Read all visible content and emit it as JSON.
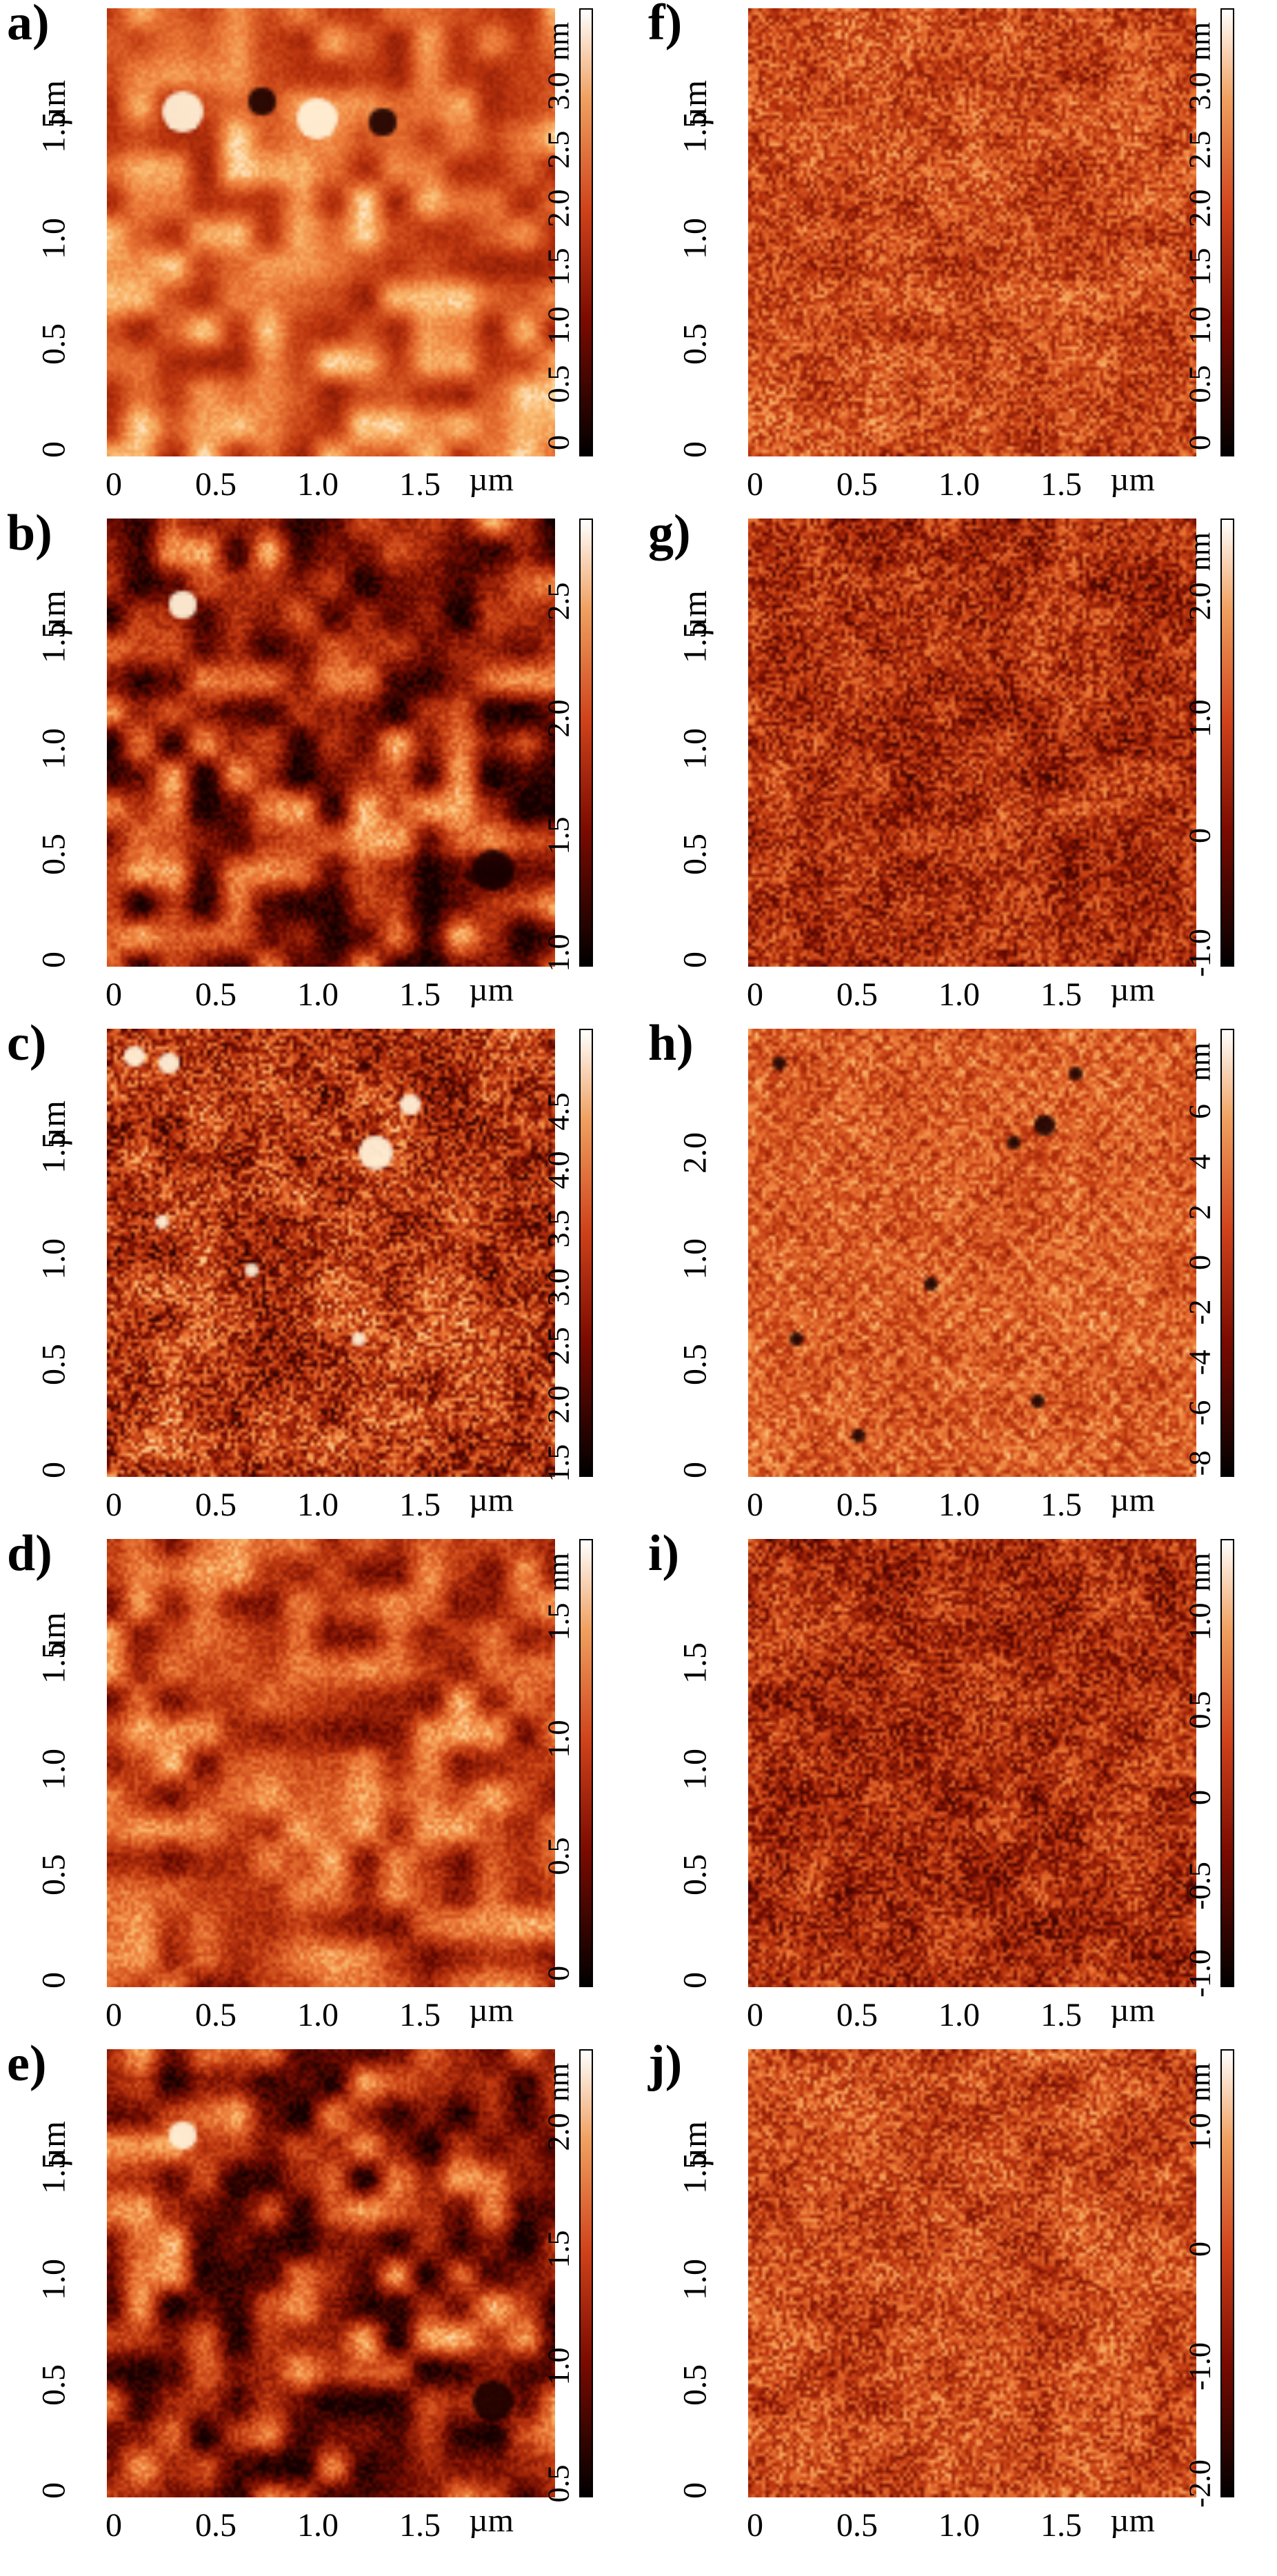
{
  "panels": [
    {
      "label": "a)",
      "y_unit": "µm",
      "y_ticks": [
        "0",
        "0.5",
        "1.0",
        "1.5"
      ],
      "x_ticks": [
        "0",
        "0.5",
        "1.0",
        "1.5"
      ],
      "x_unit": "µm",
      "scale_ticks": [
        "0",
        "0.5",
        "1.0",
        "1.5",
        "2.0",
        "2.5",
        "3.0"
      ],
      "scale_unit": "nm",
      "tone": "light"
    },
    {
      "label": "b)",
      "y_unit": "µm",
      "y_ticks": [
        "0",
        "0.5",
        "1.0",
        "1.5"
      ],
      "x_ticks": [
        "0",
        "0.5",
        "1.0",
        "1.5"
      ],
      "x_unit": "µm",
      "scale_ticks": [
        "1.0",
        "1.5",
        "2.0",
        "2.5"
      ],
      "scale_unit": "",
      "tone": "dark"
    },
    {
      "label": "c)",
      "y_unit": "µm",
      "y_ticks": [
        "0",
        "0.5",
        "1.0",
        "1.5"
      ],
      "x_ticks": [
        "0",
        "0.5",
        "1.0",
        "1.5"
      ],
      "x_unit": "µm",
      "scale_ticks": [
        "1.5",
        "2.0",
        "2.5",
        "3.0",
        "3.5",
        "4.0",
        "4.5"
      ],
      "scale_unit": "",
      "tone": "speckle"
    },
    {
      "label": "d)",
      "y_unit": "um",
      "y_ticks": [
        "0",
        "0.5",
        "1.0",
        "1.5"
      ],
      "x_ticks": [
        "0",
        "0.5",
        "1.0",
        "1.5"
      ],
      "x_unit": "µm",
      "scale_ticks": [
        "0",
        "0.5",
        "1.0",
        "1.5"
      ],
      "scale_unit": "nm",
      "tone": "mid"
    },
    {
      "label": "e)",
      "y_unit": "µm",
      "y_ticks": [
        "0",
        "0.5",
        "1.0",
        "1.5"
      ],
      "x_ticks": [
        "0",
        "0.5",
        "1.0",
        "1.5"
      ],
      "x_unit": "µm",
      "scale_ticks": [
        "0.5",
        "1.0",
        "1.5",
        "2.0"
      ],
      "scale_unit": "nm",
      "tone": "dark"
    },
    {
      "label": "f)",
      "y_unit": "µm",
      "y_ticks": [
        "0",
        "0.5",
        "1.0",
        "1.5"
      ],
      "x_ticks": [
        "0",
        "0.5",
        "1.0",
        "1.5"
      ],
      "x_unit": "µm",
      "scale_ticks": [
        "0",
        "0.5",
        "1.0",
        "1.5",
        "2.0",
        "2.5",
        "3.0"
      ],
      "scale_unit": "nm",
      "tone": "fine"
    },
    {
      "label": "g)",
      "y_unit": "µm",
      "y_ticks": [
        "0",
        "0.5",
        "1.0",
        "1.5"
      ],
      "x_ticks": [
        "0",
        "0.5",
        "1.0",
        "1.5"
      ],
      "x_unit": "µm",
      "scale_ticks": [
        "-1.0",
        "0",
        "1.0",
        "2.0"
      ],
      "scale_unit": "nm",
      "tone": "finedark"
    },
    {
      "label": "h)",
      "y_unit": "",
      "y_ticks": [
        "0",
        "0.5",
        "1.0",
        "2.0"
      ],
      "x_ticks": [
        "0",
        "0.5",
        "1.0",
        "1.5"
      ],
      "x_unit": "µm",
      "scale_ticks": [
        "-8",
        "-6",
        "-4",
        "-2",
        "0",
        "2",
        "4",
        "6"
      ],
      "scale_unit": "nm",
      "tone": "cells"
    },
    {
      "label": "i)",
      "y_unit": "",
      "y_ticks": [
        "0",
        "0.5",
        "1.0",
        "1.5"
      ],
      "x_ticks": [
        "0",
        "0.5",
        "1.0",
        "1.5"
      ],
      "x_unit": "µm",
      "scale_ticks": [
        "-1.0",
        "-0.5",
        "0",
        "0.5",
        "1.0"
      ],
      "scale_unit": "nm",
      "tone": "finedark"
    },
    {
      "label": "j)",
      "y_unit": "µm",
      "y_ticks": [
        "0",
        "0.5",
        "1.0",
        "1.5"
      ],
      "x_ticks": [
        "0",
        "0.5",
        "1.0",
        "1.5"
      ],
      "x_unit": "µm",
      "scale_ticks": [
        "-2.0",
        "-1.0",
        "0",
        "1.0"
      ],
      "scale_unit": "nm",
      "tone": "fine"
    }
  ],
  "colors": {
    "dark": "#2a0000",
    "mid": "#b8380c",
    "light": "#f6a55a",
    "highlight": "#fff0d0"
  }
}
